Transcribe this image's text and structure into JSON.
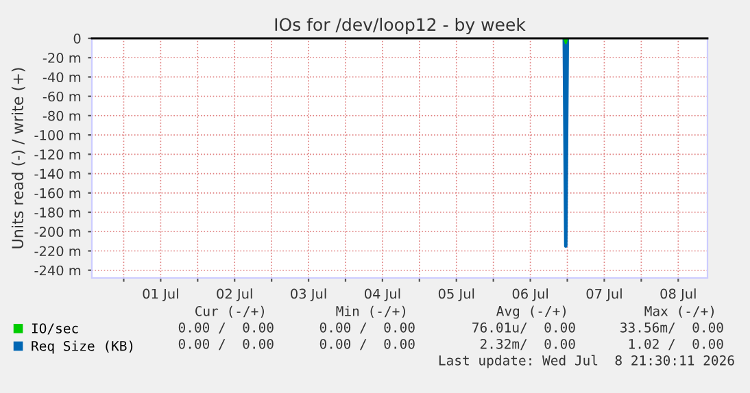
{
  "chart_data": {
    "type": "line",
    "title": "IOs for /dev/loop12 - by week",
    "ylabel": "Units read (-) / write (+)",
    "series": [
      {
        "name": "IO/sec",
        "color": "#00cc00",
        "x": [
          "2026-07-06T23:00",
          "2026-07-06T23:30",
          "2026-07-07T00:00"
        ],
        "values": [
          0,
          -5,
          0
        ]
      },
      {
        "name": "Req Size (KB)",
        "color": "#0066b3",
        "x": [
          "2026-07-06T23:00",
          "2026-07-06T23:30",
          "2026-07-07T00:00"
        ],
        "values": [
          0,
          -215,
          0
        ]
      }
    ],
    "xlim": [
      "2026-06-30T13:40",
      "2026-07-08T21:30"
    ],
    "xticks": [
      {
        "value": "2026-07-01",
        "label": null
      },
      {
        "value": "2026-07-01T12:00",
        "label": "01 Jul"
      },
      {
        "value": "2026-07-02",
        "label": null
      },
      {
        "value": "2026-07-02T12:00",
        "label": "02 Jul"
      },
      {
        "value": "2026-07-03",
        "label": null
      },
      {
        "value": "2026-07-03T12:00",
        "label": "03 Jul"
      },
      {
        "value": "2026-07-04",
        "label": null
      },
      {
        "value": "2026-07-04T12:00",
        "label": "04 Jul"
      },
      {
        "value": "2026-07-05",
        "label": null
      },
      {
        "value": "2026-07-05T12:00",
        "label": "05 Jul"
      },
      {
        "value": "2026-07-06",
        "label": null
      },
      {
        "value": "2026-07-06T12:00",
        "label": "06 Jul"
      },
      {
        "value": "2026-07-07",
        "label": null
      },
      {
        "value": "2026-07-07T12:00",
        "label": "07 Jul"
      },
      {
        "value": "2026-07-08",
        "label": null
      },
      {
        "value": "2026-07-08T12:00",
        "label": "08 Jul"
      }
    ],
    "ylim": [
      -248,
      0
    ],
    "yticks": [
      0,
      {
        "value": -20,
        "label": "-20 m"
      },
      {
        "value": -40,
        "label": "-40 m"
      },
      {
        "value": -60,
        "label": "-60 m"
      },
      {
        "value": -80,
        "label": "-80 m"
      },
      {
        "value": -100,
        "label": "-100 m"
      },
      {
        "value": -120,
        "label": "-120 m"
      },
      {
        "value": -140,
        "label": "-140 m"
      },
      {
        "value": -160,
        "label": "-160 m"
      },
      {
        "value": -180,
        "label": "-180 m"
      },
      {
        "value": -200,
        "label": "-200 m"
      },
      {
        "value": -220,
        "label": "-220 m"
      },
      {
        "value": -240,
        "label": "-240 m"
      }
    ],
    "ref_lines": [
      {
        "axis": "y",
        "value": 0,
        "color": "#000000"
      }
    ],
    "grid": true,
    "legend": "bottom left",
    "marker": "none",
    "line_style": "solid",
    "annotations": [
      "Cur (-/+)",
      "Min (-/+)",
      "Avg (-/+)",
      "Max (-/+)",
      "0.00 /  0.00",
      "0.00 /  0.00",
      "76.01u/  0.00",
      "33.56m/  0.00",
      "0.00 /  0.00",
      "0.00 /  0.00",
      "2.32m/  0.00",
      "1.02 /  0.00",
      "Last update: Wed Jul  8 21:30:11 2026"
    ]
  }
}
